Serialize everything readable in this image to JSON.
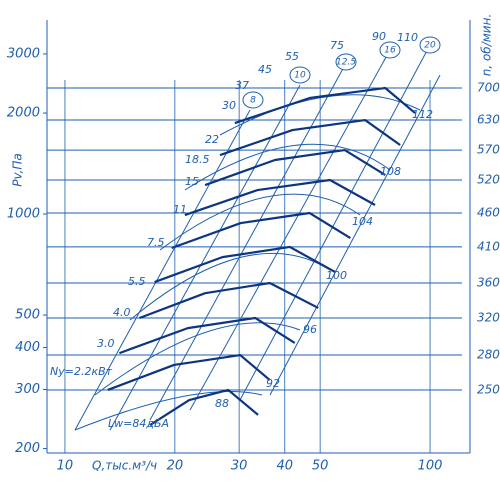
{
  "chart_data": {
    "type": "line",
    "x_label": "Q,тыс.м³/ч",
    "y_label": "Pv,Па",
    "y2_label": "n, об/мин.",
    "xscale": "log",
    "yscale": "log",
    "xlim": [
      8.93,
      120.8
    ],
    "ylim": [
      194,
      3787
    ],
    "xticks": [
      10,
      20,
      30,
      40,
      50,
      100
    ],
    "yticks": [
      200,
      300,
      400,
      500,
      1000,
      2000,
      3000
    ],
    "color": "#1f5fb0",
    "series": [
      {
        "name": "250",
        "x": [
          17.1,
          21.9,
          28.0,
          33.8
        ],
        "values": [
          235,
          279,
          299,
          252
        ]
      },
      {
        "name": "280",
        "x": [
          13.1,
          19.9,
          30.2,
          36.4
        ],
        "values": [
          299,
          355,
          380,
          320
        ]
      },
      {
        "name": "320",
        "x": [
          14.1,
          21.7,
          33.2,
          42.6
        ],
        "values": [
          385,
          457,
          490,
          413
        ]
      },
      {
        "name": "360",
        "x": [
          16.0,
          24.2,
          36.4,
          49.4
        ],
        "values": [
          490,
          581,
          623,
          525
        ]
      },
      {
        "name": "410",
        "x": [
          17.6,
          27.0,
          41.3,
          54.9
        ],
        "values": [
          627,
          744,
          798,
          672
        ]
      },
      {
        "name": "460",
        "x": [
          19.6,
          30.3,
          46.8,
          60.5
        ],
        "values": [
          792,
          940,
          1007,
          848
        ]
      },
      {
        "name": "520",
        "x": [
          21.3,
          33.7,
          53.2,
          70.7
        ],
        "values": [
          993,
          1179,
          1263,
          1064
        ]
      },
      {
        "name": "570",
        "x": [
          24.2,
          37.6,
          58.4,
          75.4
        ],
        "values": [
          1220,
          1449,
          1551,
          1307
        ]
      },
      {
        "name": "630",
        "x": [
          26.6,
          42.0,
          66.4,
          82.8
        ],
        "values": [
          1499,
          1779,
          1906,
          1606
        ]
      },
      {
        "name": "700",
        "x": [
          29.2,
          46.8,
          75.4,
          91.0
        ],
        "values": [
          1867,
          2217,
          2375,
          2000
        ]
      }
    ],
    "power_labels": [
      "Ny=2.2кВт",
      "3.0",
      "4.0",
      "5.5",
      "7.5",
      "11",
      "15",
      "18.5",
      "22",
      "30",
      "37",
      "45",
      "55",
      "75",
      "90",
      "110"
    ],
    "noise_labels": [
      "Lw=84дБА",
      "88",
      "92",
      "96",
      "100",
      "104",
      "108",
      "112"
    ],
    "size_labels": [
      "8",
      "10",
      "12.5",
      "16",
      "20"
    ]
  }
}
